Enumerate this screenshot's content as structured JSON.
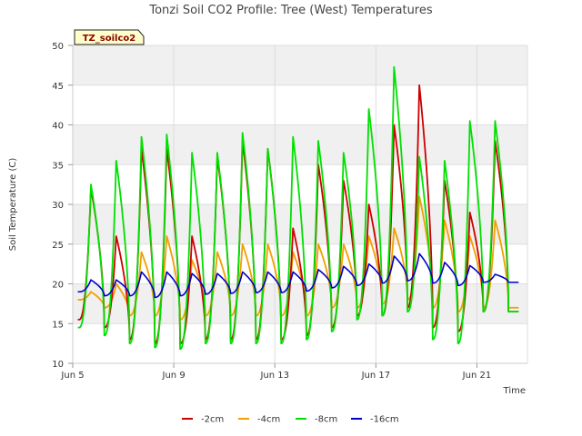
{
  "chart_data": {
    "type": "line",
    "title": "Tonzi Soil CO2 Profile: Tree (West) Temperatures",
    "xlabel": "Time",
    "ylabel": "Soil Temperature (C)",
    "badge": "TZ_soilco2",
    "ylim": [
      10,
      50
    ],
    "yticks": [
      10,
      15,
      20,
      25,
      30,
      35,
      40,
      45,
      50
    ],
    "xlim": [
      0,
      18
    ],
    "xticks": [
      {
        "day": 0,
        "label": "Jun 5"
      },
      {
        "day": 4,
        "label": "Jun 9"
      },
      {
        "day": 8,
        "label": "Jun 13"
      },
      {
        "day": 12,
        "label": "Jun 17"
      },
      {
        "day": 16,
        "label": "Jun 21"
      }
    ],
    "x_units": "days since Jun 5",
    "x_start": 0.2,
    "x_end": 17.65,
    "daily_peak_time": 0.72,
    "daily_min_time": 0.25,
    "grid": true,
    "legend_position": "bottom",
    "series": [
      {
        "name": "-2cm",
        "color": "#cc0000",
        "peaks": [
          32,
          26,
          37,
          37,
          26,
          36,
          38,
          37,
          27,
          35,
          33,
          30,
          40,
          45,
          33,
          29,
          38
        ],
        "mins": [
          15.5,
          14.5,
          13,
          12.5,
          12.5,
          13,
          13,
          13,
          13,
          13.5,
          14.5,
          16,
          16,
          17,
          14.5,
          14,
          16.5
        ]
      },
      {
        "name": "-4cm",
        "color": "#f0a000",
        "peaks": [
          19,
          20,
          24,
          26,
          23,
          24,
          25,
          25,
          24,
          25,
          25,
          26,
          27,
          31,
          28,
          26,
          28
        ],
        "mins": [
          18,
          17,
          16,
          16,
          15.5,
          16,
          16,
          16,
          16,
          16,
          17,
          17,
          17.5,
          18,
          17,
          16.5,
          17
        ]
      },
      {
        "name": "-8cm",
        "color": "#00e000",
        "peaks": [
          32.5,
          35.5,
          38.5,
          38.8,
          36.5,
          36.5,
          39,
          37,
          38.5,
          38,
          36.5,
          42,
          47.3,
          36,
          35.5,
          40.5,
          40.5
        ],
        "mins": [
          14.5,
          13.5,
          12.5,
          12,
          11.8,
          12.5,
          12.5,
          12.5,
          12.5,
          13,
          14,
          15.5,
          16,
          16.5,
          13,
          12.5,
          16.5
        ]
      },
      {
        "name": "-16cm",
        "color": "#0000cc",
        "peaks": [
          20.5,
          20.5,
          21.5,
          21.5,
          21.3,
          21.3,
          21.5,
          21.5,
          21.5,
          21.8,
          22.2,
          22.5,
          23.5,
          23.8,
          22.7,
          22.3,
          21.2
        ],
        "mins": [
          19,
          18.5,
          18.5,
          18.3,
          18.5,
          18.7,
          18.8,
          18.9,
          18.9,
          19.1,
          19.5,
          19.8,
          20.1,
          20.4,
          20.1,
          19.8,
          20.2
        ]
      }
    ]
  }
}
